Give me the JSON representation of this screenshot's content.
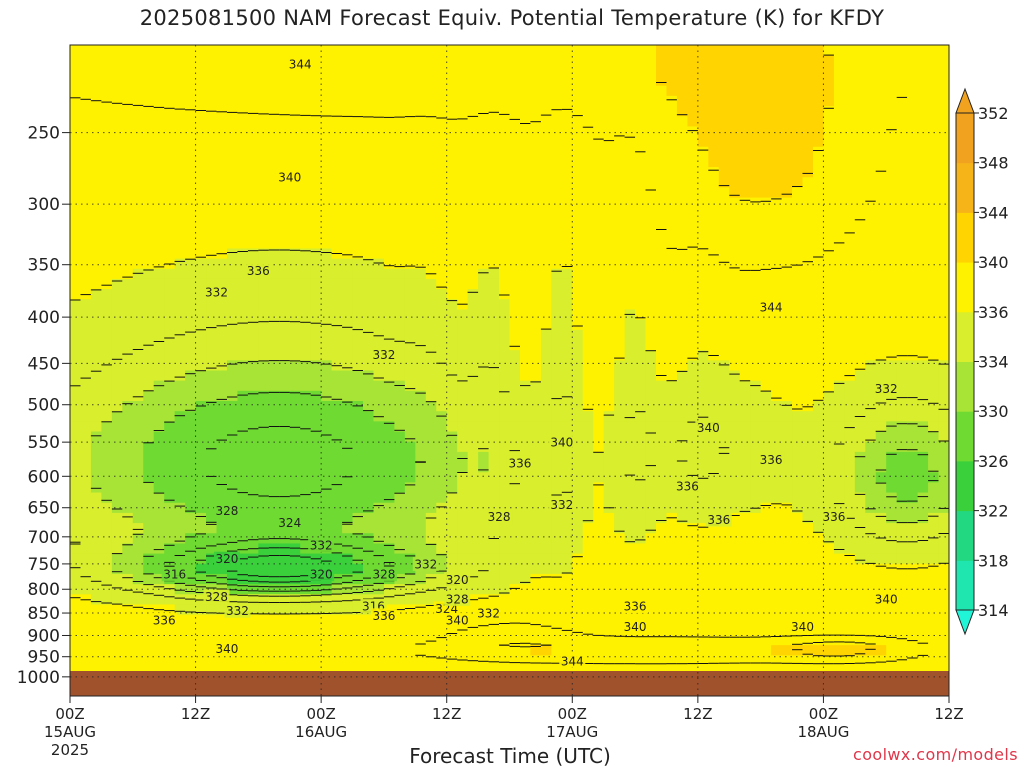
{
  "chart_data": {
    "type": "heatmap",
    "title": "2025081500 NAM Forecast Equiv. Potential Temperature (K) for KFDY",
    "xlabel": "Forecast Time (UTC)",
    "ylabel": "",
    "y_scale": "log",
    "y_inverted": true,
    "y_ticks": [
      250,
      300,
      350,
      400,
      450,
      500,
      550,
      600,
      650,
      700,
      750,
      800,
      850,
      900,
      950,
      1000
    ],
    "ylim": [
      200,
      1050
    ],
    "x_ticks": [
      {
        "hour": 0,
        "label": "00Z",
        "sub": "15AUG",
        "year": "2025"
      },
      {
        "hour": 12,
        "label": "12Z",
        "sub": "",
        "year": ""
      },
      {
        "hour": 24,
        "label": "00Z",
        "sub": "16AUG",
        "year": ""
      },
      {
        "hour": 36,
        "label": "12Z",
        "sub": "",
        "year": ""
      },
      {
        "hour": 48,
        "label": "00Z",
        "sub": "17AUG",
        "year": ""
      },
      {
        "hour": 60,
        "label": "12Z",
        "sub": "",
        "year": ""
      },
      {
        "hour": 72,
        "label": "00Z",
        "sub": "18AUG",
        "year": ""
      },
      {
        "hour": 84,
        "label": "12Z",
        "sub": "",
        "year": ""
      }
    ],
    "xlim": [
      0,
      84
    ],
    "grid": true,
    "colorbar": {
      "levels": [
        314,
        318,
        322,
        326,
        330,
        334,
        336,
        340,
        344,
        348,
        352
      ],
      "colors": [
        "#20f5d8",
        "#1ee6ae",
        "#22d880",
        "#3ad03c",
        "#6fda32",
        "#a8e436",
        "#d9ee2c",
        "#fff200",
        "#ffd400",
        "#f7b418",
        "#f1a21e"
      ]
    },
    "fields_summary": [
      {
        "level_label": "344",
        "hour": 22,
        "pressure": 210
      },
      {
        "level_label": "340",
        "hour": 21,
        "pressure": 280
      },
      {
        "level_label": "336",
        "hour": 18,
        "pressure": 355
      },
      {
        "level_label": "332",
        "hour": 14,
        "pressure": 375
      },
      {
        "level_label": "332",
        "hour": 30,
        "pressure": 440
      },
      {
        "level_label": "344",
        "hour": 67,
        "pressure": 390
      },
      {
        "level_label": "340",
        "hour": 47,
        "pressure": 550
      },
      {
        "level_label": "336",
        "hour": 43,
        "pressure": 580
      },
      {
        "level_label": "340",
        "hour": 61,
        "pressure": 530
      },
      {
        "level_label": "336",
        "hour": 59,
        "pressure": 615
      },
      {
        "level_label": "332",
        "hour": 78,
        "pressure": 480
      },
      {
        "level_label": "336",
        "hour": 67,
        "pressure": 575
      },
      {
        "level_label": "332",
        "hour": 47,
        "pressure": 645
      },
      {
        "level_label": "328",
        "hour": 41,
        "pressure": 665
      },
      {
        "level_label": "328",
        "hour": 15,
        "pressure": 655
      },
      {
        "level_label": "324",
        "hour": 21,
        "pressure": 675
      },
      {
        "level_label": "332",
        "hour": 24,
        "pressure": 715
      },
      {
        "level_label": "320",
        "hour": 15,
        "pressure": 740
      },
      {
        "level_label": "316",
        "hour": 10,
        "pressure": 770
      },
      {
        "level_label": "320",
        "hour": 24,
        "pressure": 770
      },
      {
        "level_label": "328",
        "hour": 30,
        "pressure": 770
      },
      {
        "level_label": "332",
        "hour": 34,
        "pressure": 750
      },
      {
        "level_label": "320",
        "hour": 37,
        "pressure": 780
      },
      {
        "level_label": "328",
        "hour": 14,
        "pressure": 815
      },
      {
        "level_label": "316",
        "hour": 29,
        "pressure": 835
      },
      {
        "level_label": "324",
        "hour": 36,
        "pressure": 840
      },
      {
        "level_label": "328",
        "hour": 37,
        "pressure": 820
      },
      {
        "level_label": "332",
        "hour": 16,
        "pressure": 845
      },
      {
        "level_label": "336",
        "hour": 9,
        "pressure": 865
      },
      {
        "level_label": "336",
        "hour": 30,
        "pressure": 855
      },
      {
        "level_label": "340",
        "hour": 37,
        "pressure": 865
      },
      {
        "level_label": "332",
        "hour": 40,
        "pressure": 850
      },
      {
        "level_label": "340",
        "hour": 15,
        "pressure": 930
      },
      {
        "level_label": "336",
        "hour": 54,
        "pressure": 835
      },
      {
        "level_label": "340",
        "hour": 54,
        "pressure": 880
      },
      {
        "level_label": "344",
        "hour": 48,
        "pressure": 960
      },
      {
        "level_label": "340",
        "hour": 70,
        "pressure": 880
      },
      {
        "level_label": "340",
        "hour": 78,
        "pressure": 820
      },
      {
        "level_label": "336",
        "hour": 73,
        "pressure": 665
      },
      {
        "level_label": "336",
        "hour": 62,
        "pressure": 670
      }
    ]
  },
  "colors": {
    "ground": "#a0522d",
    "text": "#222222",
    "credit": "#e0364a"
  },
  "credit": "coolwx.com/models"
}
